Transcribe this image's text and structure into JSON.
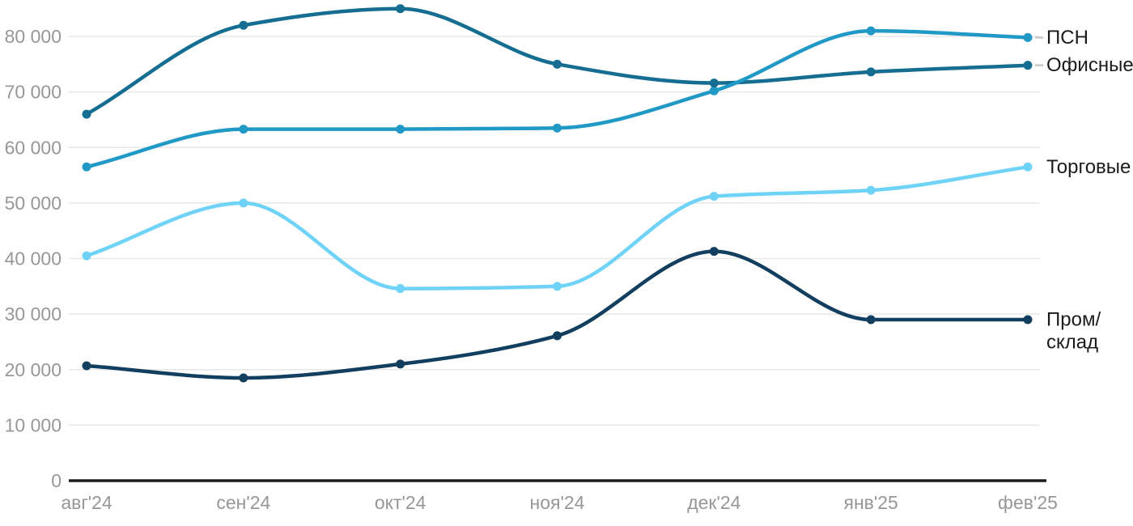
{
  "chart_data": {
    "type": "line",
    "title": "",
    "xlabel": "",
    "ylabel": "",
    "grid": true,
    "legend_position": "right-of-line-end",
    "categories": [
      "авг'24",
      "сен'24",
      "окт'24",
      "ноя'24",
      "дек'24",
      "янв'25",
      "фев'25"
    ],
    "series": [
      {
        "name": "ПСН",
        "slug": "psn",
        "color": "#2199c7",
        "leader": true,
        "label_lines": [
          "ПСН"
        ],
        "values": [
          56500,
          63300,
          63300,
          63500,
          70200,
          81000,
          79800
        ]
      },
      {
        "name": "Офисные",
        "slug": "ofisnye",
        "color": "#156e92",
        "leader": true,
        "label_lines": [
          "Офисные"
        ],
        "values": [
          66000,
          82000,
          85000,
          75000,
          71600,
          73600,
          74800
        ]
      },
      {
        "name": "Торговые",
        "slug": "torgovye",
        "color": "#6fd3f8",
        "leader": false,
        "label_lines": [
          "Торговые"
        ],
        "values": [
          40500,
          50000,
          34600,
          35000,
          51200,
          52300,
          56500
        ]
      },
      {
        "name": "Пром/склад",
        "slug": "prom-sklad",
        "color": "#123f5f",
        "leader": false,
        "label_lines": [
          "Пром/",
          "склад"
        ],
        "values": [
          20700,
          18500,
          21000,
          26100,
          41300,
          29000,
          29000
        ]
      }
    ],
    "ylim": [
      0,
      86000
    ],
    "yticks": [
      {
        "value": 0,
        "label": "0"
      },
      {
        "value": 10000,
        "label": "10 000"
      },
      {
        "value": 20000,
        "label": "20 000"
      },
      {
        "value": 30000,
        "label": "30 000"
      },
      {
        "value": 40000,
        "label": "40 000"
      },
      {
        "value": 50000,
        "label": "50 000"
      },
      {
        "value": 60000,
        "label": "60 000"
      },
      {
        "value": 70000,
        "label": "70 000"
      },
      {
        "value": 80000,
        "label": "80 000"
      }
    ],
    "colors": {
      "background": "#ffffff",
      "gridline": "#e7e7e7",
      "axis_line": "#1c1c1c",
      "tick_text": "#979797",
      "legend_text": "#1b1b1b",
      "leader_dash": "#c9c9c9"
    }
  }
}
